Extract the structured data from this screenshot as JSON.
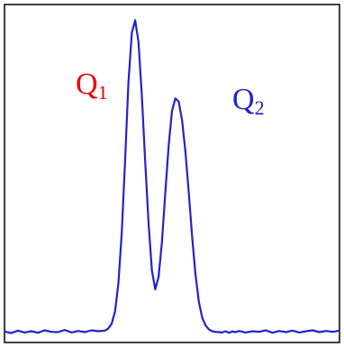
{
  "chart_data": {
    "type": "line",
    "title": "",
    "xlabel": "",
    "ylabel": "",
    "xlim": [
      0,
      100
    ],
    "ylim": [
      -0.03,
      1.05
    ],
    "grid": false,
    "series": [
      {
        "color": "#2222cc",
        "x": [
          0,
          2,
          4,
          6,
          8,
          10,
          12,
          14,
          16,
          18,
          20,
          22,
          24,
          26,
          28,
          30,
          31,
          32,
          33,
          34,
          35,
          36,
          37,
          38,
          39,
          40,
          41,
          42,
          43,
          44,
          45,
          46,
          47,
          48,
          49,
          50,
          51,
          52,
          53,
          54,
          55,
          56,
          57,
          58,
          59,
          60,
          61,
          62,
          63,
          64,
          65,
          66,
          67,
          68,
          69,
          70,
          72,
          74,
          76,
          78,
          80,
          82,
          84,
          86,
          88,
          90,
          92,
          94,
          96,
          98,
          100
        ],
        "y": [
          0.005,
          0.0,
          0.008,
          0.002,
          0.006,
          0.001,
          0.009,
          0.004,
          0.003,
          0.01,
          0.002,
          0.007,
          0.003,
          0.009,
          0.006,
          0.008,
          0.015,
          0.03,
          0.07,
          0.16,
          0.32,
          0.55,
          0.8,
          0.96,
          1.0,
          0.93,
          0.76,
          0.55,
          0.35,
          0.2,
          0.14,
          0.18,
          0.29,
          0.45,
          0.6,
          0.71,
          0.75,
          0.74,
          0.68,
          0.58,
          0.45,
          0.31,
          0.19,
          0.1,
          0.05,
          0.025,
          0.012,
          0.006,
          0.004,
          0.003,
          0.002,
          0.006,
          0.001,
          0.005,
          0.003,
          0.007,
          0.002,
          0.006,
          0.004,
          0.009,
          0.001,
          0.007,
          0.003,
          0.008,
          0.002,
          0.006,
          0.009,
          0.003,
          0.007,
          0.004,
          0.008
        ]
      }
    ],
    "annotations": [
      {
        "text": "Q",
        "sub": "1",
        "color": "#ee0000"
      },
      {
        "text": "Q",
        "sub": "2",
        "color": "#2222cc"
      }
    ]
  }
}
